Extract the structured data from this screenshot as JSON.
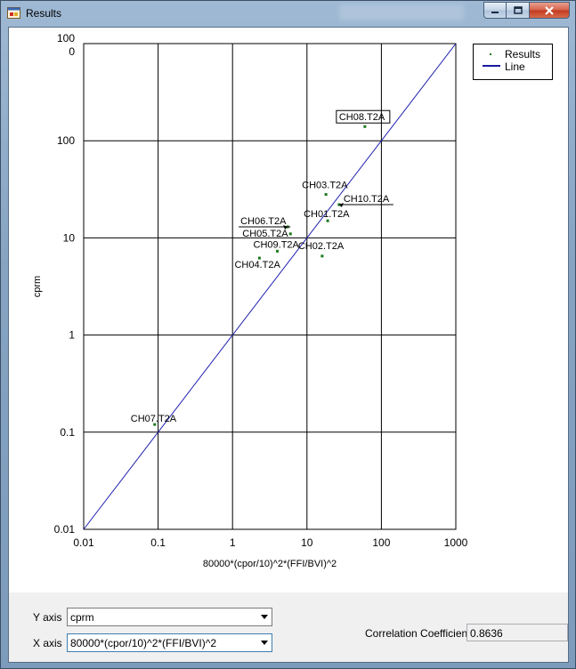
{
  "window": {
    "title": "Results"
  },
  "chart_data": {
    "type": "scatter",
    "xscale": "log",
    "yscale": "log",
    "xlim": [
      0.01,
      1000
    ],
    "ylim": [
      0.01,
      1000
    ],
    "xlabel": "80000*(cpor/10)^2*(FFI/BVI)^2",
    "ylabel": "cprm",
    "xticks": [
      "0.01",
      "0.1",
      "1",
      "10",
      "100",
      "1000"
    ],
    "yticks": [
      "0.01",
      "0.1",
      "1",
      "10",
      "100"
    ],
    "ytop_labels": [
      "100",
      "0"
    ],
    "legend": {
      "position": "top-right",
      "entries": [
        {
          "name": "Results",
          "kind": "point",
          "color": "#1a7a1a"
        },
        {
          "name": "Line",
          "kind": "line",
          "color": "#1a1aa0"
        }
      ]
    },
    "series": [
      {
        "name": "Results",
        "points": [
          {
            "label": "CH01.T2A",
            "x": 19,
            "y": 15
          },
          {
            "label": "CH02.T2A",
            "x": 16,
            "y": 6.5
          },
          {
            "label": "CH03.T2A",
            "x": 18,
            "y": 28
          },
          {
            "label": "CH04.T2A",
            "x": 2.3,
            "y": 6.2
          },
          {
            "label": "CH05.T2A",
            "x": 6.0,
            "y": 11
          },
          {
            "label": "CH06.T2A",
            "x": 5.5,
            "y": 13
          },
          {
            "label": "CH07.T2A",
            "x": 0.09,
            "y": 0.12
          },
          {
            "label": "CH08.T2A",
            "x": 60,
            "y": 140
          },
          {
            "label": "CH09.T2A",
            "x": 4.0,
            "y": 7.3
          },
          {
            "label": "CH10.T2A",
            "x": 27,
            "y": 22
          }
        ]
      },
      {
        "name": "Line",
        "points": [
          {
            "x": 0.01,
            "y": 0.01
          },
          {
            "x": 1000,
            "y": 1000
          }
        ]
      }
    ]
  },
  "controls": {
    "y_axis_label": "Y axis",
    "y_axis_value": "cprm",
    "x_axis_label": "X axis",
    "x_axis_value": "80000*(cpor/10)^2*(FFI/BVI)^2",
    "corr_label": "Correlation Coefficient",
    "corr_value": "0.8636"
  }
}
